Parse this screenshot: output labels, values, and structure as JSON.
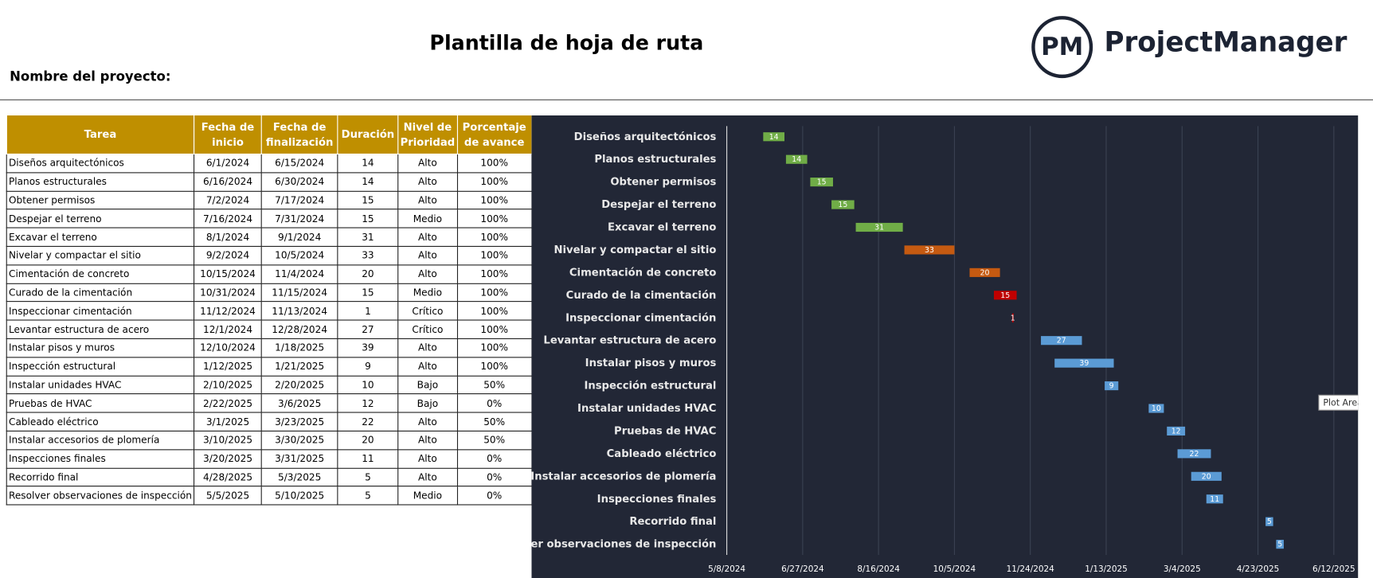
{
  "header": {
    "title": "Plantilla de hoja de ruta",
    "project_label": "Nombre del proyecto:",
    "logo_mark": "PM",
    "logo_text": "ProjectManager"
  },
  "table": {
    "columns": [
      "Tarea",
      "Fecha de inicio",
      "Fecha de finalización",
      "Duración",
      "Nivel de Prioridad",
      "Porcentaje de avance"
    ],
    "rows": [
      [
        "Diseños arquitectónicos",
        "6/1/2024",
        "6/15/2024",
        "14",
        "Alto",
        "100%"
      ],
      [
        "Planos estructurales",
        "6/16/2024",
        "6/30/2024",
        "14",
        "Alto",
        "100%"
      ],
      [
        "Obtener permisos",
        "7/2/2024",
        "7/17/2024",
        "15",
        "Alto",
        "100%"
      ],
      [
        "Despejar el terreno",
        "7/16/2024",
        "7/31/2024",
        "15",
        "Medio",
        "100%"
      ],
      [
        "Excavar el terreno",
        "8/1/2024",
        "9/1/2024",
        "31",
        "Alto",
        "100%"
      ],
      [
        "Nivelar y compactar el sitio",
        "9/2/2024",
        "10/5/2024",
        "33",
        "Alto",
        "100%"
      ],
      [
        "Cimentación de concreto",
        "10/15/2024",
        "11/4/2024",
        "20",
        "Alto",
        "100%"
      ],
      [
        "Curado de la cimentación",
        "10/31/2024",
        "11/15/2024",
        "15",
        "Medio",
        "100%"
      ],
      [
        "Inspeccionar cimentación",
        "11/12/2024",
        "11/13/2024",
        "1",
        "Crítico",
        "100%"
      ],
      [
        "Levantar estructura de acero",
        "12/1/2024",
        "12/28/2024",
        "27",
        "Crítico",
        "100%"
      ],
      [
        "Instalar pisos y muros",
        "12/10/2024",
        "1/18/2025",
        "39",
        "Alto",
        "100%"
      ],
      [
        "Inspección estructural",
        "1/12/2025",
        "1/21/2025",
        "9",
        "Alto",
        "100%"
      ],
      [
        "Instalar unidades HVAC",
        "2/10/2025",
        "2/20/2025",
        "10",
        "Bajo",
        "50%"
      ],
      [
        "Pruebas de HVAC",
        "2/22/2025",
        "3/6/2025",
        "12",
        "Bajo",
        "0%"
      ],
      [
        "Cableado eléctrico",
        "3/1/2025",
        "3/23/2025",
        "22",
        "Alto",
        "50%"
      ],
      [
        "Instalar accesorios de plomería",
        "3/10/2025",
        "3/30/2025",
        "20",
        "Alto",
        "50%"
      ],
      [
        "Inspecciones finales",
        "3/20/2025",
        "3/31/2025",
        "11",
        "Alto",
        "0%"
      ],
      [
        "Recorrido final",
        "4/28/2025",
        "5/3/2025",
        "5",
        "Alto",
        "0%"
      ],
      [
        "Resolver observaciones de inspección",
        "5/5/2025",
        "5/10/2025",
        "5",
        "Medio",
        "0%"
      ]
    ]
  },
  "chart_data": {
    "type": "gantt",
    "categories": [
      "Diseños arquitectónicos",
      "Planos estructurales",
      "Obtener permisos",
      "Despejar el terreno",
      "Excavar el terreno",
      "Nivelar y compactar el sitio",
      "Cimentación de concreto",
      "Curado de la cimentación",
      "Inspeccionar cimentación",
      "Levantar estructura de acero",
      "Instalar pisos y muros",
      "Inspección estructural",
      "Instalar unidades HVAC",
      "Pruebas de HVAC",
      "Cableado eléctrico",
      "Instalar accesorios de plomería",
      "Inspecciones finales",
      "Recorrido final",
      "Resolver observaciones de inspección"
    ],
    "starts": [
      "6/1/2024",
      "6/16/2024",
      "7/2/2024",
      "7/16/2024",
      "8/1/2024",
      "9/2/2024",
      "10/15/2024",
      "10/31/2024",
      "11/12/2024",
      "12/1/2024",
      "12/10/2024",
      "1/12/2025",
      "2/10/2025",
      "2/22/2025",
      "3/1/2025",
      "3/10/2025",
      "3/20/2025",
      "4/28/2025",
      "5/5/2025"
    ],
    "values": [
      14,
      14,
      15,
      15,
      31,
      33,
      20,
      15,
      1,
      27,
      39,
      9,
      10,
      12,
      22,
      20,
      11,
      5,
      5
    ],
    "colors": [
      "#70ad47",
      "#70ad47",
      "#70ad47",
      "#70ad47",
      "#70ad47",
      "#c55a11",
      "#c55a11",
      "#c00000",
      "#c00000",
      "#5b9bd5",
      "#5b9bd5",
      "#5b9bd5",
      "#5b9bd5",
      "#5b9bd5",
      "#5b9bd5",
      "#5b9bd5",
      "#5b9bd5",
      "#5b9bd5",
      "#5b9bd5"
    ],
    "xlim": [
      "5/8/2024",
      "6/28/2025"
    ],
    "xticks": [
      "5/8/2024",
      "6/27/2024",
      "8/16/2024",
      "10/5/2024",
      "11/24/2024",
      "1/13/2025",
      "3/4/2025",
      "4/23/2025",
      "6/12/2025"
    ],
    "grid": true,
    "tooltip": "Plot Area"
  }
}
